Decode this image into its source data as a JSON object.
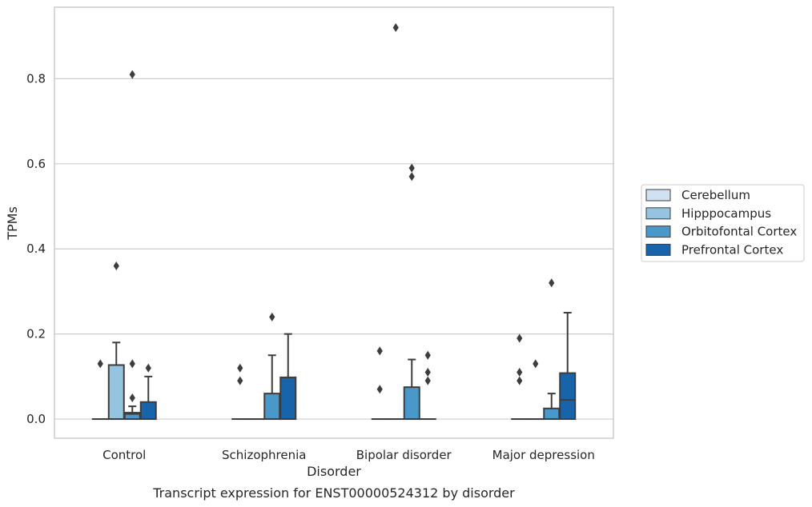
{
  "chart_data": {
    "type": "box",
    "caption": "Transcript expression for ENST00000524312 by disorder",
    "xlabel": "Disorder",
    "ylabel": "TPMs",
    "ylim": [
      -0.045,
      0.968
    ],
    "yticks": [
      "0.0",
      "0.2",
      "0.4",
      "0.6",
      "0.8"
    ],
    "ytick_values": [
      0.0,
      0.2,
      0.4,
      0.6,
      0.8
    ],
    "grid": true,
    "legend_placement": "right",
    "categories": [
      "Control",
      "Schizophrenia",
      "Bipolar disorder",
      "Major depression"
    ],
    "series": [
      {
        "name": "Cerebellum",
        "color": "#d0e1f2",
        "boxes": [
          {
            "q1": 0,
            "median": 0,
            "q3": 0,
            "whisker_low": 0,
            "whisker_high": 0,
            "outliers": [
              0.13
            ]
          },
          {
            "q1": 0,
            "median": 0,
            "q3": 0,
            "whisker_low": 0,
            "whisker_high": 0,
            "outliers": [
              0.09,
              0.12
            ]
          },
          {
            "q1": 0,
            "median": 0,
            "q3": 0,
            "whisker_low": 0,
            "whisker_high": 0,
            "outliers": [
              0.07,
              0.16
            ]
          },
          {
            "q1": 0,
            "median": 0,
            "q3": 0,
            "whisker_low": 0,
            "whisker_high": 0,
            "outliers": [
              0.09,
              0.11,
              0.19
            ]
          }
        ]
      },
      {
        "name": "Hipppocampus",
        "color": "#94c4df",
        "boxes": [
          {
            "q1": 0,
            "median": 0,
            "q3": 0.127,
            "whisker_low": 0,
            "whisker_high": 0.18,
            "outliers": [
              0.36
            ]
          },
          {
            "q1": 0,
            "median": 0,
            "q3": 0,
            "whisker_low": 0,
            "whisker_high": 0,
            "outliers": []
          },
          {
            "q1": 0,
            "median": 0,
            "q3": 0,
            "whisker_low": 0,
            "whisker_high": 0,
            "outliers": [
              0.92
            ]
          },
          {
            "q1": 0,
            "median": 0,
            "q3": 0,
            "whisker_low": 0,
            "whisker_high": 0,
            "outliers": [
              0.13
            ]
          }
        ]
      },
      {
        "name": "Orbitofontal Cortex",
        "color": "#4a98c9",
        "boxes": [
          {
            "q1": 0,
            "median": 0.012,
            "q3": 0.015,
            "whisker_low": 0,
            "whisker_high": 0.03,
            "outliers": [
              0.05,
              0.13,
              0.81
            ]
          },
          {
            "q1": 0,
            "median": 0,
            "q3": 0.06,
            "whisker_low": 0,
            "whisker_high": 0.15,
            "outliers": [
              0.24
            ]
          },
          {
            "q1": 0,
            "median": 0,
            "q3": 0.075,
            "whisker_low": 0,
            "whisker_high": 0.14,
            "outliers": [
              0.57,
              0.59
            ]
          },
          {
            "q1": 0,
            "median": 0,
            "q3": 0.025,
            "whisker_low": 0,
            "whisker_high": 0.06,
            "outliers": [
              0.32
            ]
          }
        ]
      },
      {
        "name": "Prefrontal Cortex",
        "color": "#1764ab",
        "boxes": [
          {
            "q1": 0,
            "median": 0,
            "q3": 0.04,
            "whisker_low": 0,
            "whisker_high": 0.1,
            "outliers": [
              0.12
            ]
          },
          {
            "q1": 0,
            "median": 0,
            "q3": 0.098,
            "whisker_low": 0,
            "whisker_high": 0.2,
            "outliers": []
          },
          {
            "q1": 0,
            "median": 0,
            "q3": 0,
            "whisker_low": 0,
            "whisker_high": 0,
            "outliers": [
              0.09,
              0.11,
              0.15
            ]
          },
          {
            "q1": 0,
            "median": 0.045,
            "q3": 0.108,
            "whisker_low": 0,
            "whisker_high": 0.25,
            "outliers": []
          }
        ]
      }
    ]
  }
}
